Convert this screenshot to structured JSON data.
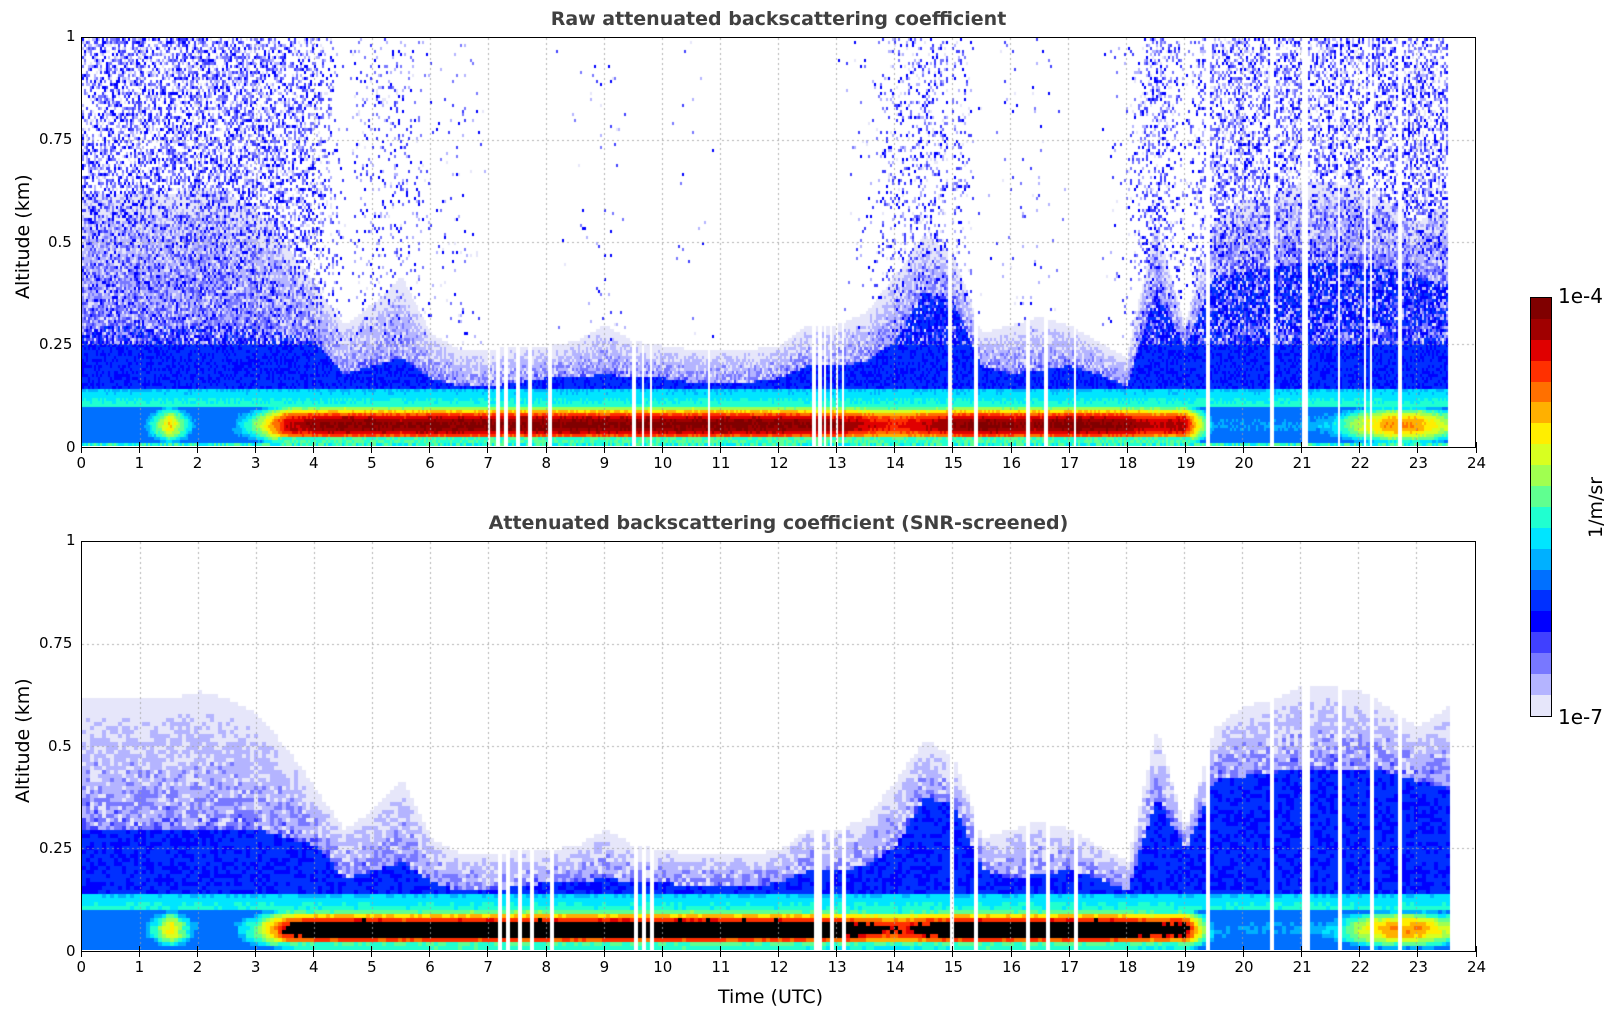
{
  "chart_data": [
    {
      "type": "heatmap",
      "title": "Raw attenuated backscattering coefficient",
      "xlabel": "",
      "ylabel": "Altitude (km)",
      "xlim": [
        0,
        24
      ],
      "ylim": [
        0,
        1
      ],
      "xticks": [
        "0",
        "1",
        "2",
        "3",
        "4",
        "5",
        "6",
        "7",
        "8",
        "9",
        "10",
        "11",
        "12",
        "13",
        "14",
        "15",
        "16",
        "17",
        "18",
        "19",
        "20",
        "21",
        "22",
        "23",
        "24"
      ],
      "yticks": [
        "0",
        "0.25",
        "0.5",
        "0.75",
        "1"
      ],
      "grid": true,
      "screened": false
    },
    {
      "type": "heatmap",
      "title": "Attenuated backscattering coefficient (SNR-screened)",
      "xlabel": "Time (UTC)",
      "ylabel": "Altitude (km)",
      "xlim": [
        0,
        24
      ],
      "ylim": [
        0,
        1
      ],
      "xticks": [
        "0",
        "1",
        "2",
        "3",
        "4",
        "5",
        "6",
        "7",
        "8",
        "9",
        "10",
        "11",
        "12",
        "13",
        "14",
        "15",
        "16",
        "17",
        "18",
        "19",
        "20",
        "21",
        "22",
        "23",
        "24"
      ],
      "yticks": [
        "0",
        "0.25",
        "0.5",
        "0.75",
        "1"
      ],
      "grid": true,
      "screened": true
    }
  ],
  "field": {
    "time_hours": [
      0,
      0.5,
      1,
      1.5,
      2,
      2.5,
      3,
      3.5,
      4,
      4.5,
      5,
      5.5,
      6,
      6.5,
      7,
      7.5,
      8,
      8.5,
      9,
      9.5,
      10,
      10.5,
      11,
      11.5,
      12,
      12.5,
      13,
      13.5,
      14,
      14.5,
      15,
      15.5,
      16,
      16.5,
      17,
      17.5,
      18,
      18.5,
      19,
      19.5,
      20,
      20.5,
      21,
      21.5,
      22,
      22.5,
      23,
      23.5
    ],
    "boundary_layer_top_km": [
      0.3,
      0.3,
      0.3,
      0.3,
      0.3,
      0.3,
      0.3,
      0.28,
      0.26,
      0.18,
      0.2,
      0.22,
      0.17,
      0.15,
      0.15,
      0.16,
      0.17,
      0.17,
      0.18,
      0.17,
      0.17,
      0.16,
      0.16,
      0.16,
      0.17,
      0.2,
      0.2,
      0.21,
      0.26,
      0.38,
      0.36,
      0.2,
      0.18,
      0.19,
      0.2,
      0.18,
      0.15,
      0.38,
      0.25,
      0.42,
      0.43,
      0.44,
      0.45,
      0.45,
      0.45,
      0.44,
      0.42,
      0.4
    ],
    "screened_signal_top_km": [
      0.62,
      0.62,
      0.62,
      0.62,
      0.64,
      0.62,
      0.58,
      0.5,
      0.4,
      0.3,
      0.35,
      0.42,
      0.28,
      0.24,
      0.24,
      0.25,
      0.25,
      0.26,
      0.3,
      0.26,
      0.25,
      0.24,
      0.24,
      0.24,
      0.25,
      0.3,
      0.3,
      0.33,
      0.42,
      0.52,
      0.48,
      0.28,
      0.3,
      0.32,
      0.3,
      0.26,
      0.22,
      0.55,
      0.3,
      0.55,
      0.6,
      0.62,
      0.65,
      0.65,
      0.64,
      0.6,
      0.55,
      0.6
    ],
    "aerosol_layer_intensity": [
      0.3,
      0.3,
      0.3,
      0.7,
      0.3,
      0.3,
      0.55,
      0.9,
      0.95,
      0.97,
      0.97,
      0.95,
      0.97,
      0.97,
      0.97,
      0.97,
      0.97,
      0.97,
      0.97,
      0.97,
      0.97,
      0.97,
      0.97,
      0.97,
      0.97,
      0.95,
      0.95,
      0.9,
      0.85,
      0.9,
      0.95,
      0.97,
      0.95,
      0.95,
      0.97,
      0.97,
      0.95,
      0.9,
      0.92,
      0.35,
      0.35,
      0.35,
      0.35,
      0.4,
      0.6,
      0.75,
      0.75,
      0.6
    ],
    "raw_noise_density": [
      0.55,
      0.55,
      0.55,
      0.55,
      0.55,
      0.55,
      0.55,
      0.5,
      0.4,
      0.02,
      0.12,
      0.15,
      0.02,
      0.05,
      0.0,
      0.0,
      0.0,
      0.01,
      0.03,
      0.0,
      0.0,
      0.02,
      0.0,
      0.0,
      0.0,
      0.0,
      0.0,
      0.03,
      0.2,
      0.3,
      0.25,
      0.0,
      0.02,
      0.04,
      0.0,
      0.0,
      0.05,
      0.45,
      0.1,
      0.5,
      0.5,
      0.5,
      0.5,
      0.5,
      0.5,
      0.5,
      0.5,
      0.5
    ],
    "data_end_hour": 23.55,
    "gap_hours": [
      7.0,
      7.15,
      7.3,
      7.5,
      7.7,
      8.05,
      9.5,
      9.65,
      9.8,
      10.8,
      12.6,
      12.7,
      12.8,
      12.9,
      13.0,
      13.1,
      14.95,
      15.4,
      16.3,
      16.6,
      17.1,
      19.4,
      20.5,
      21.05,
      21.1,
      21.65,
      22.1,
      22.2,
      22.7
    ]
  },
  "colorbar": {
    "label": "1/m/sr",
    "max_label": "1e-4",
    "min_label": "1e-7",
    "colors": [
      "#e6e6fa",
      "#b4b4ff",
      "#7878ff",
      "#4040ff",
      "#0000ff",
      "#0030ff",
      "#0070ff",
      "#00b0ff",
      "#00e5ff",
      "#20ffd0",
      "#60ff90",
      "#a0ff50",
      "#d8ff20",
      "#ffee00",
      "#ffb000",
      "#ff7000",
      "#ff3000",
      "#e00000",
      "#a00000",
      "#800000"
    ]
  }
}
